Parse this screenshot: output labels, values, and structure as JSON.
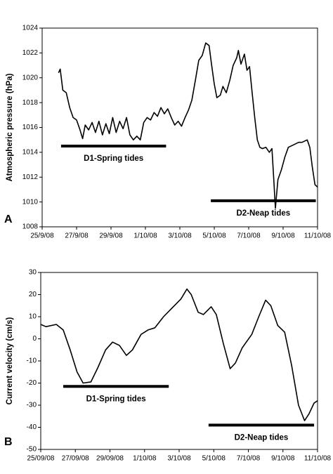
{
  "chart_data": [
    {
      "type": "line",
      "panel": "A",
      "ylabel": "Atmospheric pressure (hPa)",
      "color": "#000000",
      "xlim": [
        0,
        16
      ],
      "xticks": [
        {
          "value": 0,
          "label": "25/9/08"
        },
        {
          "value": 2,
          "label": "27/9/08"
        },
        {
          "value": 4,
          "label": "29/9/08"
        },
        {
          "value": 6,
          "label": "1/10/08"
        },
        {
          "value": 8,
          "label": "3/10/08"
        },
        {
          "value": 10,
          "label": "5/10/08"
        },
        {
          "value": 12,
          "label": "7/10/08"
        },
        {
          "value": 14,
          "label": "9/10/08"
        },
        {
          "value": 16,
          "label": "11/10/08"
        }
      ],
      "ylim": [
        1008,
        1024
      ],
      "yticks": [
        1008,
        1010,
        1012,
        1014,
        1016,
        1018,
        1020,
        1022,
        1024
      ],
      "x": [
        0.95,
        1.05,
        1.2,
        1.4,
        1.6,
        1.8,
        2.0,
        2.2,
        2.35,
        2.5,
        2.7,
        2.9,
        3.1,
        3.3,
        3.5,
        3.7,
        3.9,
        4.1,
        4.3,
        4.5,
        4.7,
        4.9,
        5.1,
        5.3,
        5.5,
        5.7,
        5.9,
        6.1,
        6.3,
        6.5,
        6.7,
        6.9,
        7.1,
        7.3,
        7.5,
        7.7,
        7.9,
        8.1,
        8.3,
        8.5,
        8.7,
        8.9,
        9.1,
        9.3,
        9.5,
        9.7,
        9.85,
        10.0,
        10.15,
        10.35,
        10.5,
        10.7,
        10.9,
        11.1,
        11.3,
        11.4,
        11.55,
        11.75,
        11.9,
        12.05,
        12.2,
        12.35,
        12.5,
        12.65,
        12.8,
        13.0,
        13.2,
        13.35,
        13.45,
        13.55,
        13.7,
        13.9,
        14.1,
        14.3,
        14.6,
        14.9,
        15.1,
        15.4,
        15.55,
        15.7,
        15.85,
        16.0
      ],
      "values": [
        1020.4,
        1020.7,
        1019.0,
        1018.8,
        1017.6,
        1016.8,
        1016.6,
        1015.8,
        1015.1,
        1016.2,
        1015.8,
        1016.4,
        1015.6,
        1016.5,
        1015.4,
        1016.3,
        1015.5,
        1016.8,
        1015.6,
        1016.5,
        1015.9,
        1016.8,
        1015.4,
        1015.0,
        1015.3,
        1015.0,
        1016.4,
        1016.8,
        1016.6,
        1017.2,
        1016.9,
        1017.6,
        1017.1,
        1017.5,
        1016.8,
        1016.2,
        1016.5,
        1016.1,
        1016.8,
        1017.4,
        1018.2,
        1019.8,
        1021.4,
        1021.8,
        1022.8,
        1022.6,
        1021.0,
        1019.5,
        1018.4,
        1018.6,
        1019.3,
        1018.8,
        1019.8,
        1021.0,
        1021.6,
        1022.2,
        1021.1,
        1021.9,
        1020.6,
        1020.9,
        1018.8,
        1016.8,
        1015.0,
        1014.4,
        1014.3,
        1014.4,
        1014.0,
        1014.3,
        1012.0,
        1009.5,
        1011.8,
        1012.6,
        1013.6,
        1014.4,
        1014.6,
        1014.8,
        1014.8,
        1015.0,
        1014.4,
        1012.8,
        1011.4,
        1011.2
      ],
      "annotations": [
        {
          "text": "D1-Spring tides",
          "x": [
            1.1,
            7.2
          ],
          "y": 1014.5
        },
        {
          "text": "D2-Neap tides",
          "x": [
            9.8,
            15.9
          ],
          "y": 1010.1
        }
      ]
    },
    {
      "type": "line",
      "panel": "B",
      "ylabel": "Current velocity  (cm/s)",
      "color": "#000000",
      "xlim": [
        0,
        16
      ],
      "xticks": [
        {
          "value": 0,
          "label": "25/09/08"
        },
        {
          "value": 2,
          "label": "27/09/08"
        },
        {
          "value": 4,
          "label": "29/09/08"
        },
        {
          "value": 6,
          "label": "1/10/08"
        },
        {
          "value": 8,
          "label": "3/10/08"
        },
        {
          "value": 10,
          "label": "5/10/08"
        },
        {
          "value": 12,
          "label": "7/10/08"
        },
        {
          "value": 14,
          "label": "9/10/08"
        },
        {
          "value": 16,
          "label": "11/10/08"
        }
      ],
      "ylim": [
        -50,
        30
      ],
      "yticks": [
        -50,
        -40,
        -30,
        -20,
        -10,
        0,
        10,
        20,
        30
      ],
      "x": [
        0,
        0.3,
        0.9,
        1.3,
        1.7,
        2.1,
        2.45,
        2.9,
        3.3,
        3.75,
        4.15,
        4.55,
        4.95,
        5.3,
        5.8,
        6.2,
        6.6,
        7.1,
        7.6,
        8.1,
        8.45,
        8.7,
        9.1,
        9.4,
        9.85,
        10.15,
        10.55,
        10.95,
        11.25,
        11.65,
        12.2,
        12.6,
        13.0,
        13.3,
        13.7,
        14.1,
        14.5,
        14.9,
        15.25,
        15.5,
        15.8,
        16.0
      ],
      "values": [
        6.5,
        5.5,
        6.5,
        4,
        -5,
        -15,
        -20,
        -19.5,
        -13,
        -5,
        -1.5,
        -3,
        -7.5,
        -5,
        2,
        4,
        5,
        10,
        14,
        18,
        22.5,
        20,
        12,
        11,
        14.5,
        11,
        -2,
        -13.5,
        -11,
        -4,
        2,
        10,
        17.5,
        15,
        6,
        3,
        -12,
        -30,
        -37,
        -34,
        -29,
        -28
      ],
      "annotations": [
        {
          "text": "D1-Spring tides",
          "x": [
            1.3,
            7.4
          ],
          "y": -21.5
        },
        {
          "text": "D2-Neap tides",
          "x": [
            9.7,
            15.8
          ],
          "y": -39
        }
      ]
    }
  ]
}
